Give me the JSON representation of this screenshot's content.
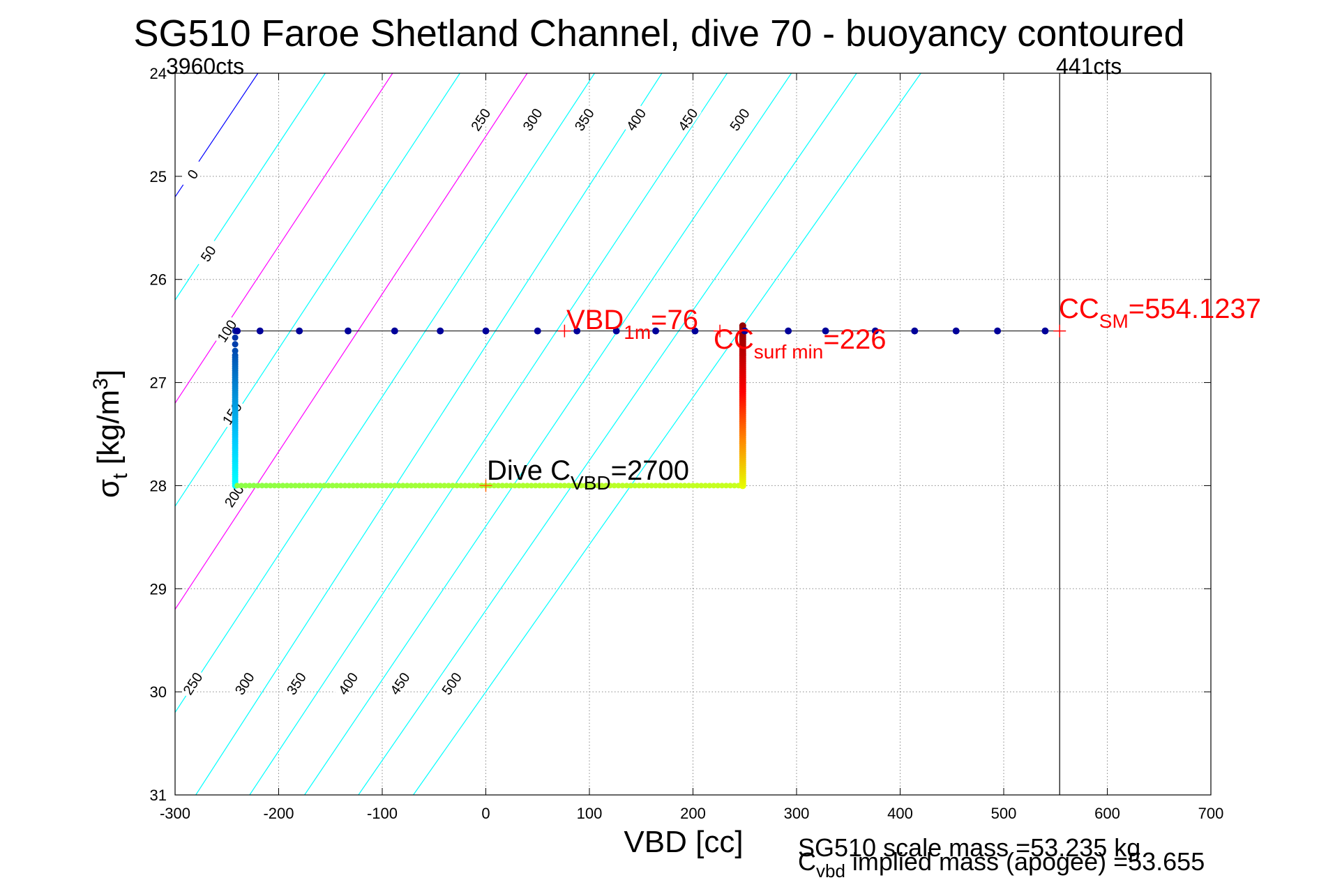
{
  "chart_data": {
    "type": "scatter",
    "title": "SG510 Faroe Shetland Channel, dive 70 - buoyancy contoured",
    "xlabel": "VBD [cc]",
    "ylabel_base": "σ",
    "ylabel_sub": "t",
    "ylabel_unit": "[kg/m",
    "ylabel_sup": "3",
    "ylabel_close": "]",
    "xlim": [
      -300,
      700
    ],
    "ylim": [
      24,
      31
    ],
    "y_reversed": true,
    "grid": true,
    "x_ticks": [
      -300,
      -200,
      -100,
      0,
      100,
      200,
      300,
      400,
      500,
      600,
      700
    ],
    "y_ticks": [
      24,
      25,
      26,
      27,
      28,
      29,
      30,
      31
    ],
    "x_tick_labels": [
      "-300",
      "-200",
      "-100",
      "0",
      "100",
      "200",
      "300",
      "400",
      "500",
      "600",
      "700"
    ],
    "y_tick_labels": [
      "24",
      "25",
      "26",
      "27",
      "28",
      "29",
      "30",
      "31"
    ],
    "left_count_label": "3960cts",
    "right_count_label": "441cts",
    "contours": [
      {
        "level": "0",
        "x0": -300,
        "y0": 25.2,
        "x1": -220,
        "y1": 24.0,
        "color": "#0000ff",
        "label_x": -283,
        "label_y": 24.98
      },
      {
        "level": "50",
        "x0": -300,
        "y0": 26.2,
        "x1": -155,
        "y1": 24.0,
        "color": "#00ffff",
        "label_x": -268,
        "label_y": 25.75
      },
      {
        "level": "100",
        "x0": -300,
        "y0": 27.2,
        "x1": -90,
        "y1": 24.0,
        "color": "#ff00ff",
        "label_x": -250,
        "label_y": 26.5
      },
      {
        "level": "150",
        "x0": -300,
        "y0": 28.2,
        "x1": -25,
        "y1": 24.0,
        "color": "#00ffff",
        "label_x": -245,
        "label_y": 27.3
      },
      {
        "level": "200",
        "x0": -300,
        "y0": 29.2,
        "x1": 40,
        "y1": 24.0,
        "color": "#ff00ff",
        "label_x": -243,
        "label_y": 28.1
      },
      {
        "level": "250",
        "x0": -300,
        "y0": 30.2,
        "x1": 105,
        "y1": 24.0,
        "color": "#00ffff",
        "label_x": -283,
        "label_y": 29.92,
        "label2_x": -5,
        "label2_y": 24.45
      },
      {
        "level": "300",
        "x0": -280,
        "y0": 31.0,
        "x1": 170,
        "y1": 24.0,
        "color": "#00ffff",
        "label_x": -233,
        "label_y": 29.92,
        "label2_x": 45,
        "label2_y": 24.45
      },
      {
        "level": "350",
        "x0": -228,
        "y0": 31.0,
        "x1": 233,
        "y1": 24.0,
        "color": "#00ffff",
        "label_x": -183,
        "label_y": 29.92,
        "label2_x": 95,
        "label2_y": 24.45
      },
      {
        "level": "400",
        "x0": -175,
        "y0": 31.0,
        "x1": 295,
        "y1": 24.0,
        "color": "#00ffff",
        "label_x": -133,
        "label_y": 29.92,
        "label2_x": 145,
        "label2_y": 24.45
      },
      {
        "level": "450",
        "x0": -123,
        "y0": 31.0,
        "x1": 358,
        "y1": 24.0,
        "color": "#00ffff",
        "label_x": -83,
        "label_y": 29.92,
        "label2_x": 195,
        "label2_y": 24.45
      },
      {
        "level": "500",
        "x0": -70,
        "y0": 31.0,
        "x1": 420,
        "y1": 24.0,
        "color": "#00ffff",
        "label_x": -33,
        "label_y": 29.92,
        "label2_x": 245,
        "label2_y": 24.45
      }
    ],
    "track_top": {
      "y": 26.5,
      "color": "#000099",
      "x": [
        -240,
        -218,
        -180,
        -133,
        -88,
        -44,
        0,
        50,
        88,
        126,
        164,
        202,
        250,
        292,
        328,
        376,
        414,
        454,
        494,
        540
      ]
    },
    "track_left": {
      "x": -242,
      "y_start": 26.5,
      "y_end": 28.0
    },
    "track_bottom": {
      "y": 28.0,
      "x_start": -240,
      "x_end": 248,
      "color": "#88ff44"
    },
    "track_right": {
      "x": 248,
      "y_start": 28.0,
      "y_end": 26.45
    },
    "top_line": {
      "y": 26.5,
      "x_start": -240,
      "x_end": 554
    },
    "vline_x": 554,
    "annotations": {
      "vbd1m_main": "VBD",
      "vbd1m_sub": "1m",
      "vbd1m_val": "=76",
      "ccsurf_main": "CC",
      "ccsurf_sub": "surf min",
      "ccsurf_val": "=226",
      "ccsm_main": "CC",
      "ccsm_sub": "SM",
      "ccsm_val": "=554.1237",
      "dive_main": "Dive C",
      "dive_sub": "VBD",
      "dive_val": "=2700"
    },
    "markers": [
      {
        "x": 76,
        "y": 26.5
      },
      {
        "x": 226,
        "y": 26.5
      },
      {
        "x": 554,
        "y": 26.5
      },
      {
        "x": 0,
        "y": 28.0
      }
    ],
    "footer_scale_mass": "SG510 scale mass =53.235 kg",
    "footer_implied_main": "C",
    "footer_implied_sub": "vbd",
    "footer_implied_rest": " implied mass (apogee) =53.655"
  },
  "colors": {
    "annotation": "#ff0000",
    "axis": "#000000",
    "grid": "#888888"
  }
}
